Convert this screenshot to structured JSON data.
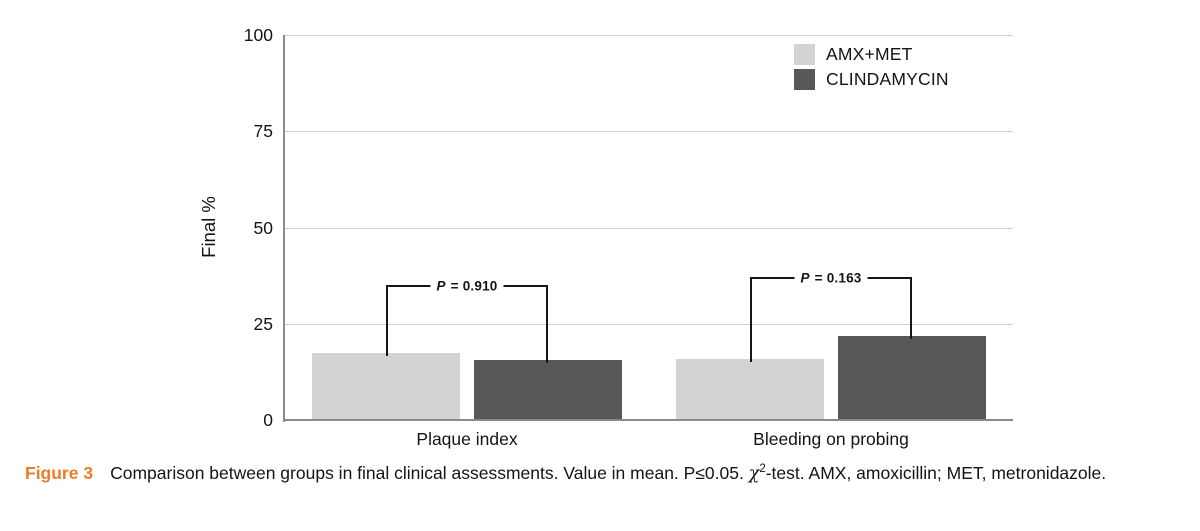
{
  "accent_colors": {
    "figure_label_orange": "#ee7b25",
    "bracket_line": "#161616",
    "axis_gray": "#8a8a8a",
    "gridline_gray": "#cfcfcf"
  },
  "chart_data": {
    "type": "bar",
    "title": "",
    "xlabel": "",
    "ylabel": "Final %",
    "ylim": [
      0,
      100
    ],
    "yticks": [
      0,
      25,
      50,
      75,
      100
    ],
    "grid": true,
    "legend_position": "top-right",
    "categories": [
      "Plaque index",
      "Bleeding on probing"
    ],
    "series": [
      {
        "name": "AMX+MET",
        "color": "#d3d3d3",
        "values": [
          17.4,
          15.8
        ]
      },
      {
        "name": "CLINDAMYCIN",
        "color": "#585858",
        "values": [
          15.6,
          21.8
        ]
      }
    ],
    "annotations": [
      {
        "category": "Plaque index",
        "label": "P = 0.910",
        "bracket_y": 35.1
      },
      {
        "category": "Bleeding on probing",
        "label": "P = 0.163",
        "bracket_y": 37.1
      }
    ]
  },
  "caption": {
    "label": "Figure 3",
    "text_before_chi": "Comparison between groups in final clinical assessments. Value in mean. P≤0.05. ",
    "chi": "χ",
    "chi_sup": "2",
    "text_after_chi": "-test. AMX, amoxicillin; MET, metronidazole."
  }
}
